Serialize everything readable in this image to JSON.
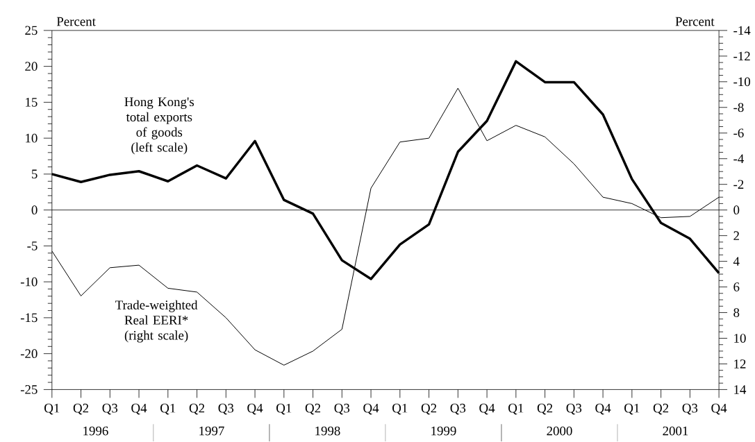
{
  "chart_data": {
    "type": "line",
    "categories": [
      "Q1",
      "Q2",
      "Q3",
      "Q4",
      "Q1",
      "Q2",
      "Q3",
      "Q4",
      "Q1",
      "Q2",
      "Q3",
      "Q4",
      "Q1",
      "Q2",
      "Q3",
      "Q4",
      "Q1",
      "Q2",
      "Q3",
      "Q4",
      "Q1",
      "Q2",
      "Q3",
      "Q4"
    ],
    "ylabel": "Percent",
    "y2label": "Percent",
    "ylim": [
      -25,
      25
    ],
    "yticks": [
      -25,
      -20,
      -15,
      -10,
      -5,
      0,
      5,
      10,
      15,
      20,
      25
    ],
    "y2lim": [
      14,
      -14
    ],
    "y2ticks": [
      14,
      12,
      10,
      8,
      6,
      4,
      2,
      0,
      -2,
      -4,
      -6,
      -8,
      -10,
      -12,
      -14
    ],
    "series": [
      {
        "name": "Hong Kong's total exports of goods (left scale)",
        "color": "#000000",
        "values": [
          5,
          3.9,
          4.9,
          5.4,
          4,
          6.2,
          4.4,
          9.6,
          1.4,
          -0.5,
          -7,
          -9.6,
          -4.8,
          -2,
          8.1,
          12.4,
          20.7,
          17.8,
          17.8,
          13.3,
          4.3,
          -1.8,
          -4,
          -8.8
        ]
      },
      {
        "name": "Trade-weighted Real EERI* (right scale)",
        "color": "#000000",
        "axis": "y2",
        "values": [
          3.2,
          6.7,
          4.5,
          4.3,
          6.1,
          6.4,
          8.4,
          10.9,
          12.1,
          11.0,
          9.3,
          -1.7,
          -5.3,
          -5.6,
          -9.5,
          -5.4,
          -6.6,
          -5.7,
          -3.6,
          -1.0,
          -0.5,
          0.6,
          0.5,
          -1.0
        ]
      }
    ],
    "ref_lines": [
      {
        "axis": "y",
        "value": 0,
        "color": "#000000"
      }
    ],
    "annotations": [
      "1996",
      "1997",
      "1998",
      "1999",
      "2000",
      "2001"
    ],
    "grid": false,
    "marker": "none",
    "line_style": "solid"
  }
}
